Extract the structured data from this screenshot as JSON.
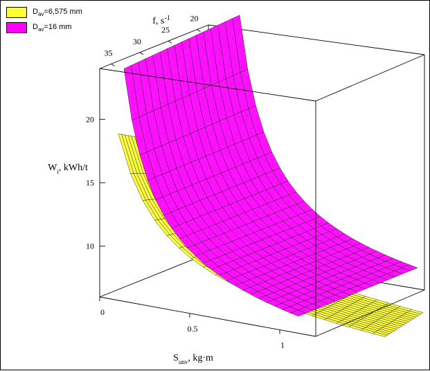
{
  "chart_data": {
    "type": "surface3d",
    "title": "",
    "legend": {
      "placement": "top-left",
      "entries": [
        {
          "base": "D",
          "sub": "av",
          "rest": "=6,575 mm",
          "color": "#ffff33"
        },
        {
          "base": "D",
          "sub": "av",
          "rest": "=16 mm",
          "color": "#ff00ff"
        }
      ]
    },
    "axes": {
      "f": {
        "label": "f, s",
        "label_sup": "-1",
        "ticks": [
          "20",
          "25",
          "30",
          "35"
        ],
        "range": [
          18,
          37
        ]
      },
      "s": {
        "label": "S",
        "label_sub": "unv",
        "label_rest": ", kg·m",
        "ticks": [
          "0",
          "0.5",
          "1"
        ],
        "range": [
          0,
          1.2
        ]
      },
      "w": {
        "label": "W",
        "label_sub": "i",
        "label_rest": ", kWh/t",
        "ticks": [
          "10",
          "15",
          "20"
        ],
        "range": [
          6,
          24
        ]
      }
    },
    "series": [
      {
        "name": "Dav=6,575 mm",
        "w_min": 7.0,
        "w_max_front": 18.7,
        "w_max_back": 16.0
      },
      {
        "name": "Dav=16 mm",
        "w_min": 7.5,
        "w_max_front": 23.1,
        "w_max_back": 24.0
      }
    ]
  }
}
